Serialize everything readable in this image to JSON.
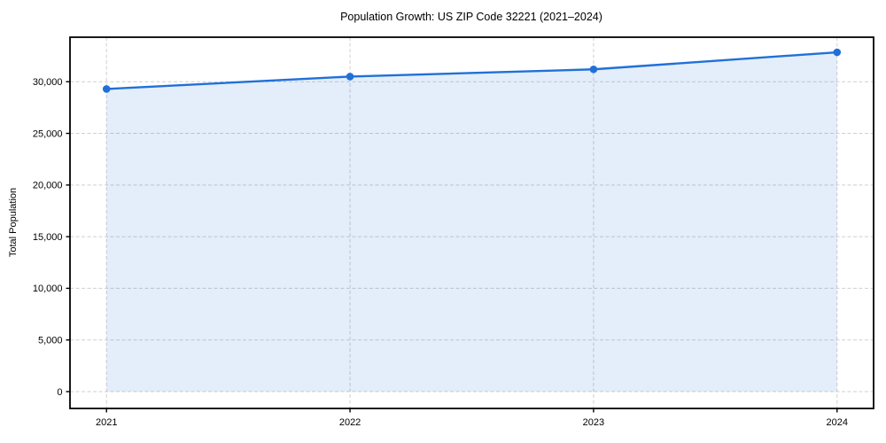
{
  "figure": {
    "title": "Population Growth: US ZIP Code 32221 (2021–2024)",
    "ylabel": "Total Population"
  },
  "chart_data": {
    "type": "line",
    "title": "Population Growth: US ZIP Code 32221 (2021–2024)",
    "xlabel": "",
    "ylabel": "Total Population",
    "x": [
      2021,
      2022,
      2023,
      2024
    ],
    "series": [
      {
        "name": "Total Population",
        "values": [
          29300,
          30500,
          31200,
          32850
        ]
      }
    ],
    "xticks": [
      2021,
      2022,
      2023,
      2024
    ],
    "yticks": [
      0,
      5000,
      10000,
      15000,
      20000,
      25000,
      30000
    ],
    "xlim": [
      2020.85,
      2024.15
    ],
    "ylim": [
      -1630,
      34310
    ],
    "grid": true,
    "grid_style": "dashed",
    "legend_position": "none",
    "area_fill": true,
    "area_baseline": 0,
    "colors": {
      "line": "#2170d8",
      "marker": "#2170d8",
      "fill": "rgba(33,112,216,0.12)",
      "grid": "#cfcfcf",
      "axis": "#000000",
      "background": "#ffffff",
      "text": "#000000"
    }
  }
}
